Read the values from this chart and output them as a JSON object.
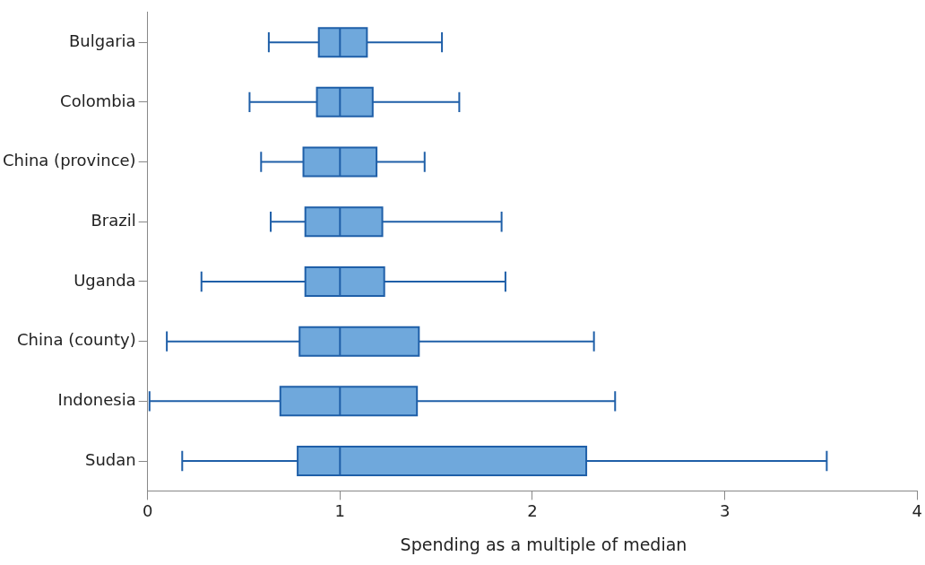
{
  "chart_data": {
    "type": "box",
    "orientation": "horizontal",
    "xlabel": "Spending as a multiple of median",
    "categories": [
      "Bulgaria",
      "Colombia",
      "China (province)",
      "Brazil",
      "Uganda",
      "China (county)",
      "Indonesia",
      "Sudan"
    ],
    "xlim": [
      0,
      4
    ],
    "xticks": [
      0,
      1,
      2,
      3,
      4
    ],
    "series": [
      {
        "color": "#6fa8dc",
        "boxes": [
          {
            "low": 0.63,
            "q1": 0.89,
            "median": 1,
            "q3": 1.14,
            "high": 1.53
          },
          {
            "low": 0.53,
            "q1": 0.88,
            "median": 1,
            "q3": 1.17,
            "high": 1.62
          },
          {
            "low": 0.59,
            "q1": 0.81,
            "median": 1,
            "q3": 1.19,
            "high": 1.44
          },
          {
            "low": 0.64,
            "q1": 0.82,
            "median": 1,
            "q3": 1.22,
            "high": 1.84
          },
          {
            "low": 0.28,
            "q1": 0.82,
            "median": 1,
            "q3": 1.23,
            "high": 1.86
          },
          {
            "low": 0.1,
            "q1": 0.79,
            "median": 1,
            "q3": 1.41,
            "high": 2.32
          },
          {
            "low": 0.01,
            "q1": 0.69,
            "median": 1,
            "q3": 1.4,
            "high": 2.43
          },
          {
            "low": 0.18,
            "q1": 0.78,
            "median": 1,
            "q3": 2.28,
            "high": 3.53
          }
        ]
      }
    ]
  }
}
